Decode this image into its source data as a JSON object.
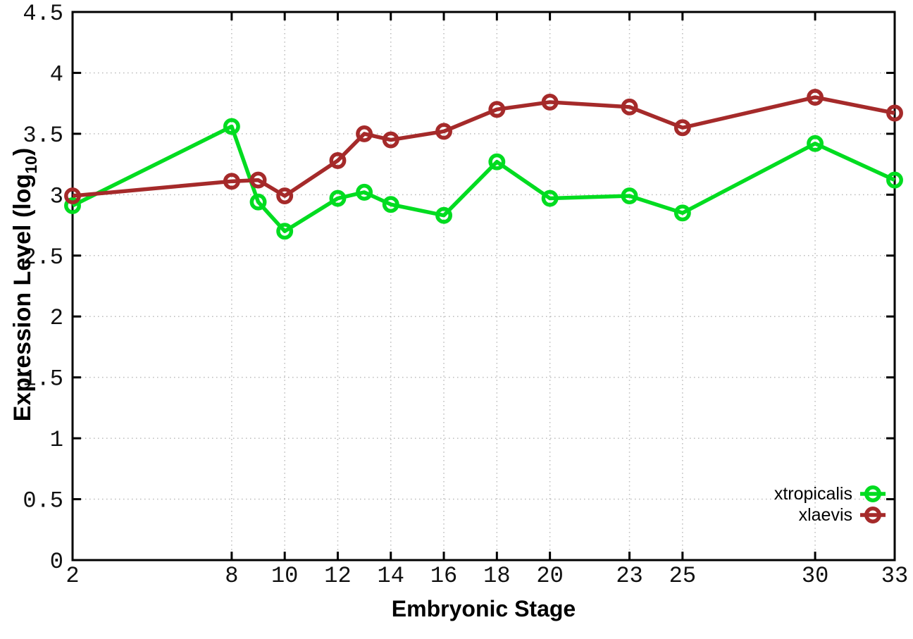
{
  "chart_data": {
    "type": "line",
    "xlabel": "Embryonic Stage",
    "ylabel": "Expression Level (log10)",
    "ylabel_prefix": "Expression Level (log",
    "ylabel_sub": "10",
    "ylabel_suffix": ")",
    "xlim": [
      2,
      33
    ],
    "ylim": [
      0,
      4.5
    ],
    "grid": true,
    "legend_position": "bottom-right",
    "background_color": "#ffffff",
    "grid_color": "#bbbbbb",
    "axis_color": "#000000",
    "tick_label_color": "#111111",
    "x_ticks": [
      {
        "value": 2,
        "label": "2"
      },
      {
        "value": 8,
        "label": "8"
      },
      {
        "value": 10,
        "label": "10"
      },
      {
        "value": 12,
        "label": "12"
      },
      {
        "value": 14,
        "label": "14"
      },
      {
        "value": 16,
        "label": "16"
      },
      {
        "value": 18,
        "label": "18"
      },
      {
        "value": 20,
        "label": "20"
      },
      {
        "value": 23,
        "label": "23"
      },
      {
        "value": 25,
        "label": "25"
      },
      {
        "value": 30,
        "label": "30"
      },
      {
        "value": 33,
        "label": "33"
      }
    ],
    "y_ticks": [
      {
        "value": 0,
        "label": "0"
      },
      {
        "value": 0.5,
        "label": "0.5"
      },
      {
        "value": 1,
        "label": "1"
      },
      {
        "value": 1.5,
        "label": "1.5"
      },
      {
        "value": 2,
        "label": "2"
      },
      {
        "value": 2.5,
        "label": "2.5"
      },
      {
        "value": 3,
        "label": "3"
      },
      {
        "value": 3.5,
        "label": "3.5"
      },
      {
        "value": 4,
        "label": "4"
      },
      {
        "value": 4.5,
        "label": "4.5"
      }
    ],
    "x": [
      2,
      8,
      9,
      10,
      12,
      13,
      14,
      16,
      18,
      20,
      23,
      25,
      30,
      33
    ],
    "series": [
      {
        "name": "xtropicalis",
        "color": "#00DC20",
        "values": [
          2.91,
          3.56,
          2.94,
          2.7,
          2.97,
          3.02,
          2.92,
          2.83,
          3.27,
          2.97,
          2.99,
          2.85,
          3.42,
          3.12
        ]
      },
      {
        "name": "xlaevis",
        "color": "#A52A2A",
        "values": [
          2.99,
          3.11,
          3.12,
          2.99,
          3.28,
          3.5,
          3.45,
          3.52,
          3.7,
          3.76,
          3.72,
          3.55,
          3.8,
          3.67
        ]
      }
    ]
  }
}
